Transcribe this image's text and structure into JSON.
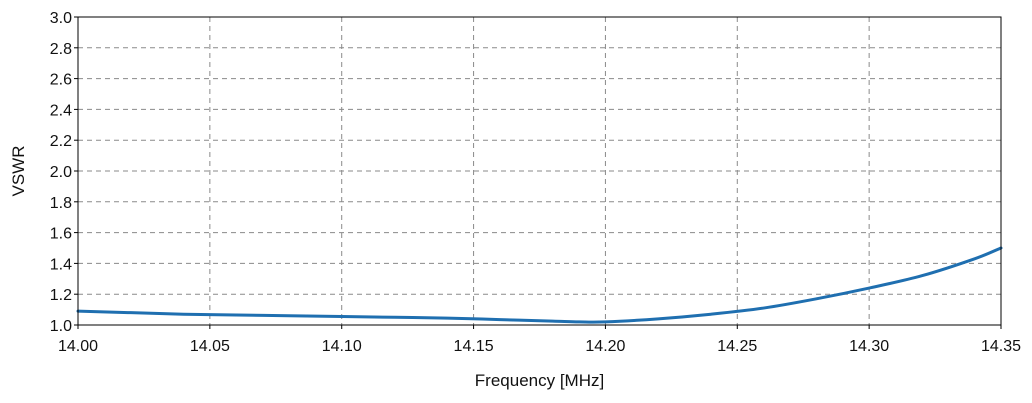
{
  "colors": {
    "series": "#1f6fb0",
    "grid": "#8a8a8a",
    "frame": "#000000",
    "background": "#ffffff"
  },
  "chart_data": {
    "type": "line",
    "title": "",
    "xlabel": "Frequency [MHz]",
    "ylabel": "VSWR",
    "xlim": [
      14.0,
      14.35
    ],
    "ylim": [
      1.0,
      3.0
    ],
    "xticks": [
      "14.00",
      "14.05",
      "14.10",
      "14.15",
      "14.20",
      "14.25",
      "14.30",
      "14.35"
    ],
    "yticks": [
      "1.0",
      "1.2",
      "1.4",
      "1.6",
      "1.8",
      "2.0",
      "2.2",
      "2.4",
      "2.6",
      "2.8",
      "3.0"
    ],
    "grid": true,
    "legend": "none",
    "series": [
      {
        "x": [
          14.0,
          14.02,
          14.04,
          14.06,
          14.08,
          14.1,
          14.12,
          14.14,
          14.16,
          14.18,
          14.19,
          14.2,
          14.22,
          14.24,
          14.26,
          14.28,
          14.3,
          14.32,
          14.34,
          14.35
        ],
        "y": [
          1.09,
          1.08,
          1.07,
          1.065,
          1.06,
          1.055,
          1.05,
          1.045,
          1.035,
          1.025,
          1.02,
          1.02,
          1.04,
          1.07,
          1.11,
          1.17,
          1.24,
          1.32,
          1.43,
          1.5
        ]
      }
    ]
  }
}
